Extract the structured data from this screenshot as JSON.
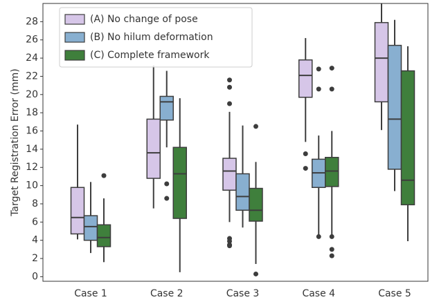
{
  "chart_data": {
    "type": "box",
    "y_label": "Target Registration Error (mm)",
    "categories": [
      "Case 1",
      "Case 2",
      "Case 3",
      "Case 4",
      "Case 5"
    ],
    "ylim": [
      -0.5,
      30
    ],
    "yticks": [
      0,
      2,
      4,
      6,
      8,
      10,
      12,
      14,
      16,
      18,
      20,
      22,
      24,
      26,
      28
    ],
    "legend": "upper left",
    "series": [
      {
        "name": "(A) No change of pose",
        "color": "#d6c6e8",
        "boxes": [
          {
            "whislo": 4.1,
            "q1": 4.7,
            "med": 6.5,
            "q3": 9.8,
            "whishi": 16.7,
            "fliers": []
          },
          {
            "whislo": 7.5,
            "q1": 10.8,
            "med": 13.6,
            "q3": 17.3,
            "whishi": 23.2,
            "fliers": []
          },
          {
            "whislo": 6.0,
            "q1": 9.5,
            "med": 11.6,
            "q3": 13.0,
            "whishi": 18.1,
            "fliers": [
              21.6,
              20.8,
              19.0,
              4.2,
              3.9,
              3.5,
              3.4
            ]
          },
          {
            "whislo": 14.8,
            "q1": 19.7,
            "med": 22.1,
            "q3": 23.8,
            "whishi": 26.2,
            "fliers": [
              13.5,
              11.9
            ]
          },
          {
            "whislo": 16.1,
            "q1": 19.2,
            "med": 24.0,
            "q3": 27.9,
            "whishi": 30.0,
            "fliers": []
          }
        ]
      },
      {
        "name": "(B) No hilum deformation",
        "color": "#88afd0",
        "boxes": [
          {
            "whislo": 2.6,
            "q1": 4.0,
            "med": 5.5,
            "q3": 6.7,
            "whishi": 10.4,
            "fliers": []
          },
          {
            "whislo": 14.2,
            "q1": 17.2,
            "med": 19.2,
            "q3": 19.8,
            "whishi": 22.6,
            "fliers": [
              10.2,
              8.6
            ]
          },
          {
            "whislo": 5.4,
            "q1": 7.3,
            "med": 8.8,
            "q3": 11.3,
            "whishi": 16.6,
            "fliers": []
          },
          {
            "whislo": 4.5,
            "q1": 9.8,
            "med": 11.4,
            "q3": 12.9,
            "whishi": 15.5,
            "fliers": [
              22.8,
              20.6,
              4.4
            ]
          },
          {
            "whislo": 9.4,
            "q1": 11.8,
            "med": 17.3,
            "q3": 25.4,
            "whishi": 28.2,
            "fliers": []
          }
        ]
      },
      {
        "name": "(C) Complete framework",
        "color": "#3f7f3c",
        "boxes": [
          {
            "whislo": 1.6,
            "q1": 3.3,
            "med": 4.3,
            "q3": 5.7,
            "whishi": 8.6,
            "fliers": [
              11.1
            ]
          },
          {
            "whislo": 0.5,
            "q1": 6.4,
            "med": 11.3,
            "q3": 14.2,
            "whishi": 19.6,
            "fliers": []
          },
          {
            "whislo": 1.4,
            "q1": 6.1,
            "med": 7.3,
            "q3": 9.7,
            "whishi": 12.6,
            "fliers": [
              16.5,
              0.3
            ]
          },
          {
            "whislo": 4.5,
            "q1": 9.9,
            "med": 11.6,
            "q3": 13.1,
            "whishi": 16.0,
            "fliers": [
              22.9,
              20.6,
              4.4,
              3.0,
              2.3
            ]
          },
          {
            "whislo": 3.9,
            "q1": 7.9,
            "med": 10.6,
            "q3": 22.6,
            "whishi": 25.3,
            "fliers": []
          }
        ]
      }
    ]
  }
}
